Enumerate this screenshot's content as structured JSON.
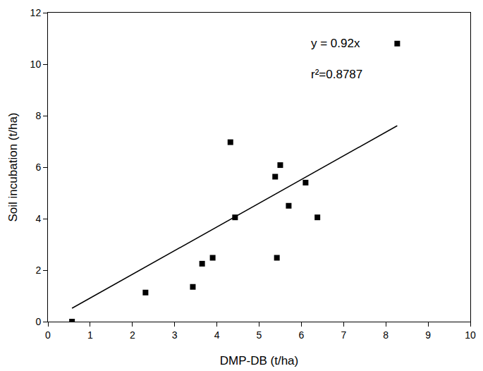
{
  "chart_data": {
    "type": "scatter",
    "x_label": "DMP-DB (t/ha)",
    "y_label": "Soil incubation (t/ha)",
    "xlim": [
      0,
      10
    ],
    "xticks": [
      0,
      1,
      2,
      3,
      4,
      5,
      6,
      7,
      8,
      9,
      10
    ],
    "ylim": [
      0,
      12
    ],
    "yticks": [
      0,
      2,
      4,
      6,
      8,
      10,
      12
    ],
    "grid": false,
    "series": [
      {
        "type": "scatter",
        "marker": "square",
        "color": "#000000",
        "x": [
          0.57,
          2.31,
          3.43,
          3.65,
          3.9,
          4.32,
          4.43,
          5.38,
          5.42,
          5.5,
          5.7,
          6.1,
          6.38,
          8.27
        ],
        "values": [
          0.0,
          1.13,
          1.35,
          2.25,
          2.48,
          6.97,
          4.05,
          5.63,
          2.48,
          6.08,
          4.5,
          5.4,
          4.05,
          10.8
        ]
      },
      {
        "type": "line",
        "line_style": "solid",
        "color": "#000000",
        "x": [
          0.57,
          8.27
        ],
        "values": [
          0.52,
          7.61
        ]
      }
    ],
    "annotations": [
      {
        "text": "y = 0.92x"
      },
      {
        "text": "r²=0.8787"
      }
    ]
  }
}
